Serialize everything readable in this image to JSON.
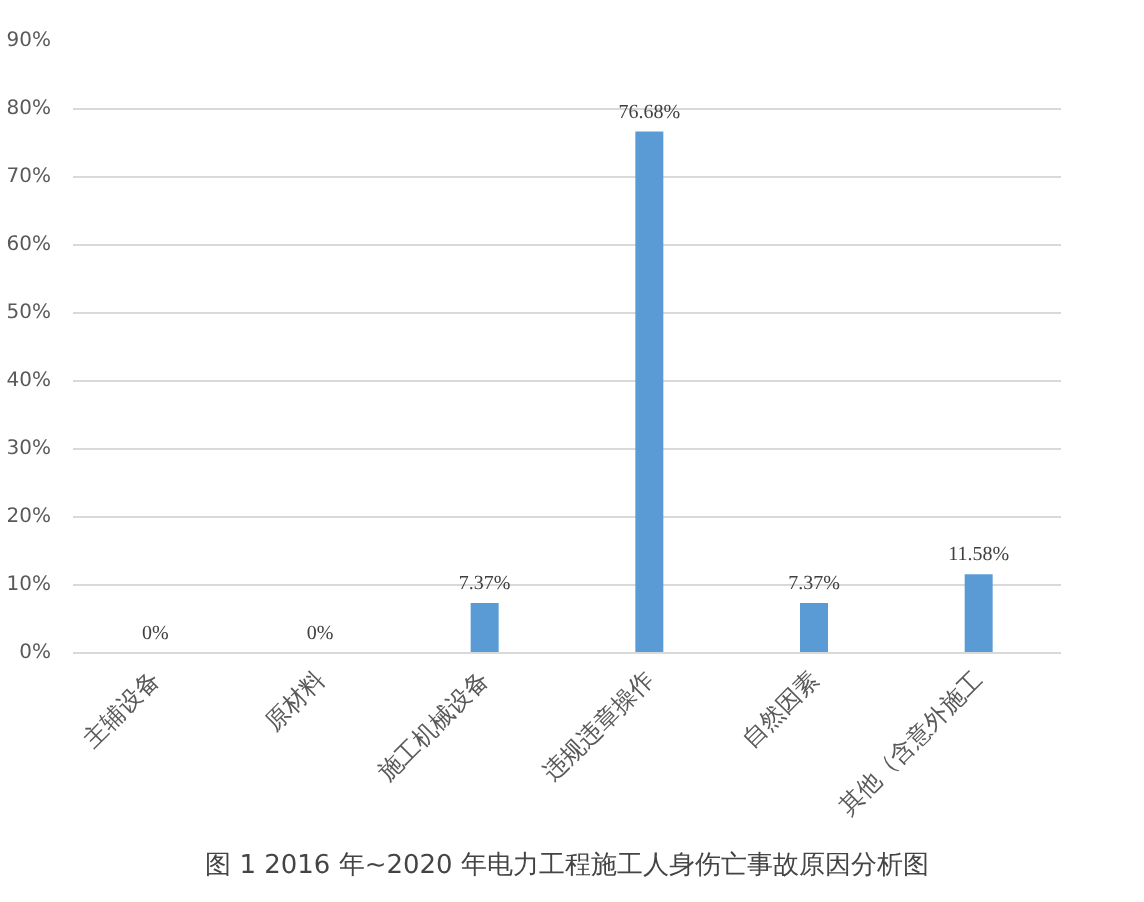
{
  "chart_data": {
    "type": "bar",
    "title": "图 1 2016 年~2020 年电力工程施工人身伤亡事故原因分析图",
    "categories": [
      "主辅设备",
      "原材料",
      "施工机械设备",
      "违规违章操作",
      "自然因素",
      "其他（含意外施工"
    ],
    "values": [
      0,
      0,
      7.37,
      76.68,
      7.37,
      11.58
    ],
    "value_labels": [
      "0%",
      "0%",
      "7.37%",
      "76.68%",
      "7.37%",
      "11.58%"
    ],
    "color": "#5b9bd5",
    "ylim": [
      0,
      90
    ],
    "yticks": [
      {
        "value": 0,
        "label": "0%"
      },
      {
        "value": 10,
        "label": "10%"
      },
      {
        "value": 20,
        "label": "20%"
      },
      {
        "value": 30,
        "label": "30%"
      },
      {
        "value": 40,
        "label": "40%"
      },
      {
        "value": 50,
        "label": "50%"
      },
      {
        "value": 60,
        "label": "60%"
      },
      {
        "value": 70,
        "label": "70%"
      },
      {
        "value": 80,
        "label": "80%"
      },
      {
        "value": 90,
        "label": "90%"
      }
    ],
    "grid": "y"
  }
}
